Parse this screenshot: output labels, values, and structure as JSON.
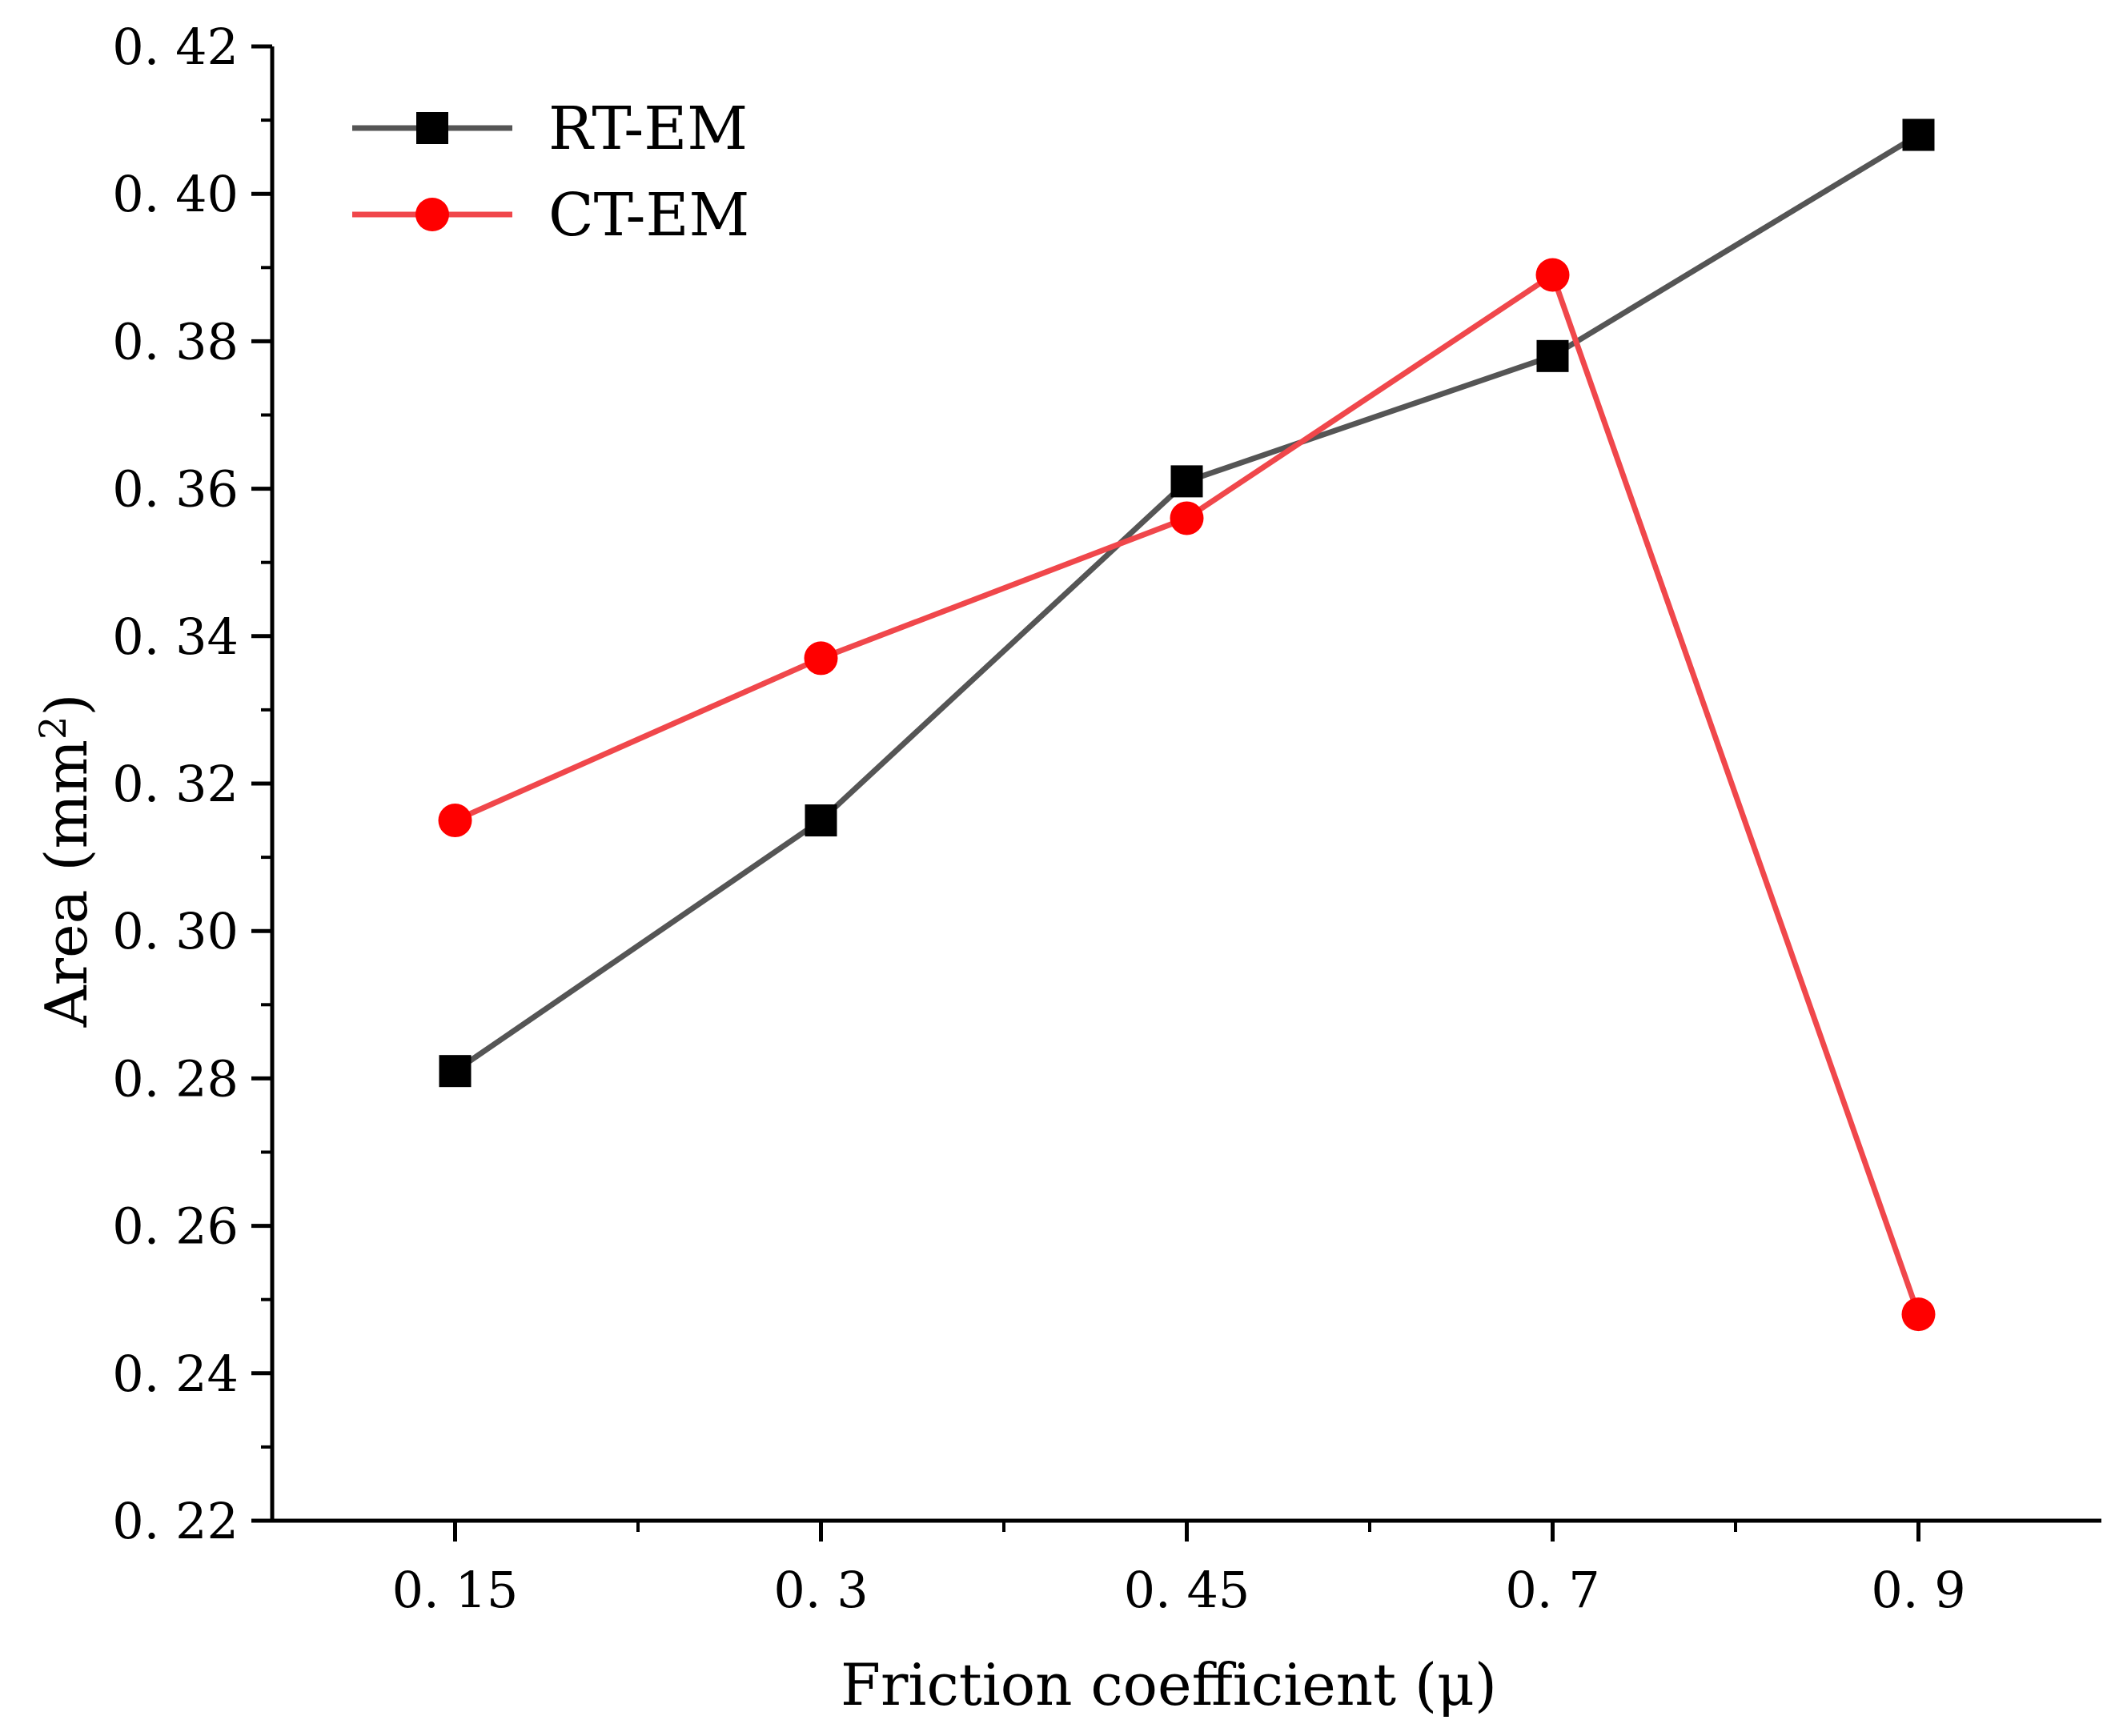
{
  "chart_data": {
    "type": "line",
    "title": "",
    "xlabel": "Friction coefficient (μ)",
    "ylabel": "Area (mm²)",
    "ylabel_parts": {
      "main": "Area (mm",
      "sup": "2",
      "close": ")"
    },
    "categories": [
      "0.15",
      "0.3",
      "0.45",
      "0.7",
      "0.9"
    ],
    "ylim": [
      0.22,
      0.42
    ],
    "yticks": [
      "0.22",
      "0.24",
      "0.26",
      "0.28",
      "0.30",
      "0.32",
      "0.34",
      "0.36",
      "0.38",
      "0.40",
      "0.42"
    ],
    "grid": false,
    "legend_position": "top-left",
    "series": [
      {
        "name": "RT-EM",
        "color": "#555555",
        "marker_color": "#000000",
        "marker": "square",
        "values": [
          0.281,
          0.315,
          0.361,
          0.378,
          0.408
        ]
      },
      {
        "name": "CT-EM",
        "color": "#f0474b",
        "marker_color": "#ff0000",
        "marker": "circle",
        "values": [
          0.315,
          0.337,
          0.356,
          0.389,
          0.248
        ]
      }
    ]
  }
}
